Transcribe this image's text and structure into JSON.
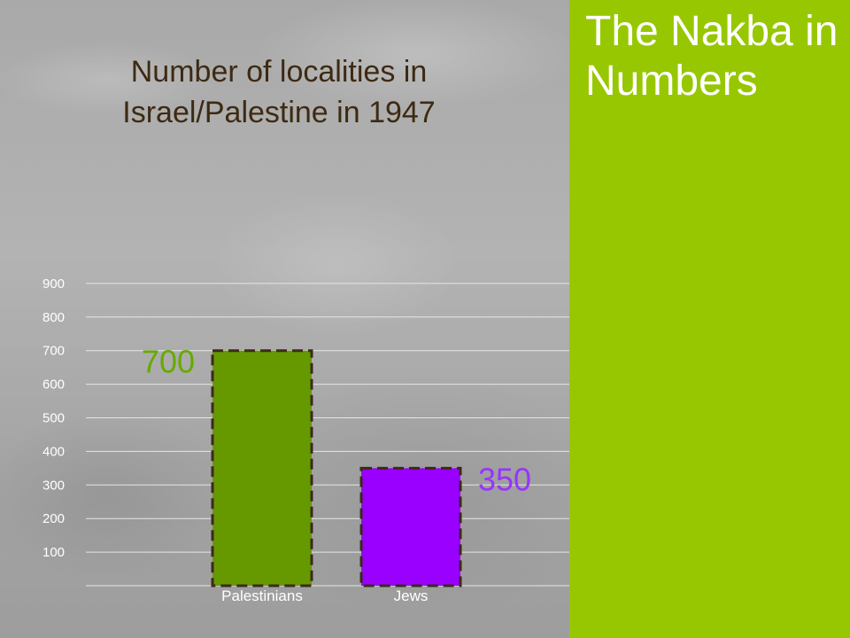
{
  "slide": {
    "title": "The Nakba in Numbers"
  },
  "colors": {
    "background": "#a9a9a9",
    "sidebar": "#97c700",
    "title_text": "#ffffff",
    "chart_title_text": "#3d2a12",
    "grid": "#e6e6e6",
    "bar_border": "#3b2a1a"
  },
  "chart_data": {
    "type": "bar",
    "title": "Number of localities in Israel/Palestine in 1947",
    "xlabel": "",
    "ylabel": "",
    "categories": [
      "Palestinians",
      "Jews"
    ],
    "values": [
      700,
      350
    ],
    "value_labels": [
      "700",
      "350"
    ],
    "bar_colors": [
      "#669900",
      "#9900ff"
    ],
    "value_label_colors": [
      "#66aa00",
      "#9933ff"
    ],
    "yticks": [
      100,
      200,
      300,
      400,
      500,
      600,
      700,
      800,
      900
    ],
    "ytick_labels": [
      "100",
      "200",
      "300",
      "400",
      "500",
      "600",
      "700",
      "800",
      "900"
    ],
    "ylim": [
      0,
      900
    ],
    "grid": true,
    "bar_border": "dashed"
  }
}
